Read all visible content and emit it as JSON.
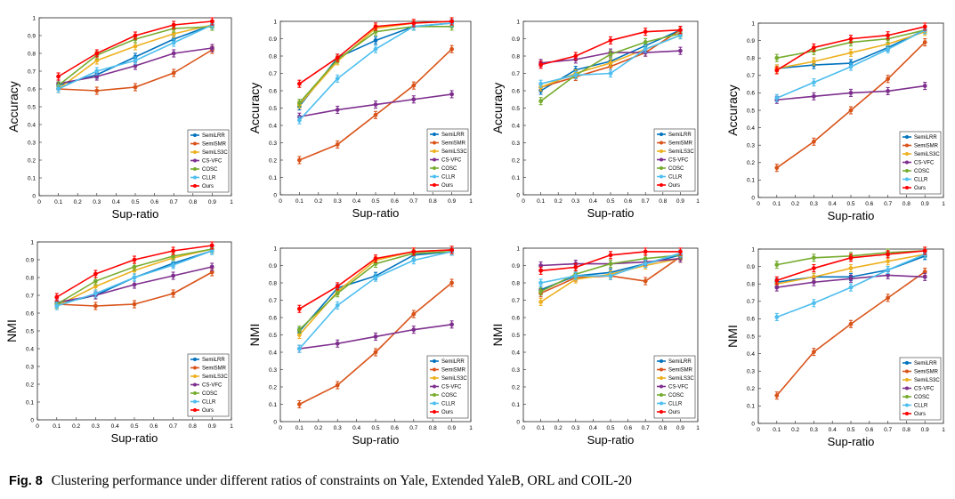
{
  "caption": {
    "label": "Fig. 8",
    "text": "Clustering performance under different ratios of constraints on Yale, Extended YaleB, ORL and COIL-20"
  },
  "legend_labels": [
    "SemiLRR",
    "SemiSMR",
    "SemiLS3C",
    "CS-VFC",
    "COSC",
    "CLLR",
    "Ours"
  ],
  "colors": [
    "#0072BD",
    "#D95319",
    "#EDB120",
    "#7E2F8E",
    "#77AC30",
    "#4DBEEE",
    "#FF0000"
  ],
  "chart_data": [
    {
      "type": "line",
      "title": "",
      "xlabel": "Sup-ratio",
      "ylabel": "Accuracy",
      "xlim": [
        0,
        1
      ],
      "ylim": [
        0,
        1
      ],
      "legend_position": "bottom-right",
      "x": [
        0.1,
        0.3,
        0.5,
        0.7,
        0.9
      ],
      "series": [
        {
          "name": "SemiLRR",
          "values": [
            0.62,
            0.68,
            0.78,
            0.88,
            0.96
          ]
        },
        {
          "name": "SemiSMR",
          "values": [
            0.6,
            0.59,
            0.61,
            0.69,
            0.82
          ]
        },
        {
          "name": "SemiLS3C",
          "values": [
            0.6,
            0.76,
            0.84,
            0.91,
            0.96
          ]
        },
        {
          "name": "CS-VFC",
          "values": [
            0.63,
            0.67,
            0.73,
            0.8,
            0.83
          ]
        },
        {
          "name": "COSC",
          "values": [
            0.62,
            0.79,
            0.88,
            0.94,
            0.95
          ]
        },
        {
          "name": "CLLR",
          "values": [
            0.6,
            0.7,
            0.76,
            0.86,
            0.96
          ]
        },
        {
          "name": "Ours",
          "values": [
            0.67,
            0.8,
            0.9,
            0.96,
            0.98
          ]
        }
      ]
    },
    {
      "type": "line",
      "title": "",
      "xlabel": "Sup-ratio",
      "ylabel": "Accuracy",
      "xlim": [
        0,
        1
      ],
      "ylim": [
        0,
        1
      ],
      "legend_position": "bottom-right",
      "x": [
        0.1,
        0.3,
        0.5,
        0.7,
        0.9
      ],
      "series": [
        {
          "name": "SemiLRR",
          "values": [
            0.51,
            0.79,
            0.89,
            0.97,
            0.99
          ]
        },
        {
          "name": "SemiSMR",
          "values": [
            0.2,
            0.29,
            0.46,
            0.63,
            0.84
          ]
        },
        {
          "name": "SemiLS3C",
          "values": [
            0.52,
            0.77,
            0.96,
            0.99,
            1.0
          ]
        },
        {
          "name": "CS-VFC",
          "values": [
            0.45,
            0.49,
            0.52,
            0.55,
            0.58
          ]
        },
        {
          "name": "COSC",
          "values": [
            0.53,
            0.78,
            0.94,
            0.97,
            0.97
          ]
        },
        {
          "name": "CLLR",
          "values": [
            0.43,
            0.67,
            0.84,
            0.97,
            0.99
          ]
        },
        {
          "name": "Ours",
          "values": [
            0.64,
            0.79,
            0.97,
            0.99,
            1.0
          ]
        }
      ]
    },
    {
      "type": "line",
      "title": "",
      "xlabel": "Sup-ratio",
      "ylabel": "Accuracy",
      "xlim": [
        0,
        1
      ],
      "ylim": [
        0,
        1
      ],
      "legend_position": "bottom-right",
      "x": [
        0.1,
        0.3,
        0.5,
        0.7,
        0.9
      ],
      "series": [
        {
          "name": "SemiLRR",
          "values": [
            0.6,
            0.72,
            0.77,
            0.86,
            0.95
          ]
        },
        {
          "name": "SemiSMR",
          "values": [
            0.62,
            0.68,
            0.74,
            0.82,
            0.95
          ]
        },
        {
          "name": "SemiLS3C",
          "values": [
            0.62,
            0.7,
            0.76,
            0.84,
            0.92
          ]
        },
        {
          "name": "CS-VFC",
          "values": [
            0.76,
            0.78,
            0.82,
            0.82,
            0.83
          ]
        },
        {
          "name": "COSC",
          "values": [
            0.54,
            0.69,
            0.81,
            0.88,
            0.93
          ]
        },
        {
          "name": "CLLR",
          "values": [
            0.64,
            0.69,
            0.7,
            0.84,
            0.92
          ]
        },
        {
          "name": "Ours",
          "values": [
            0.75,
            0.8,
            0.89,
            0.94,
            0.95
          ]
        }
      ]
    },
    {
      "type": "line",
      "title": "",
      "xlabel": "Sup-ratio",
      "ylabel": "Accuracy",
      "xlim": [
        0,
        1
      ],
      "ylim": [
        0,
        1
      ],
      "legend_position": "bottom-right",
      "x": [
        0.1,
        0.3,
        0.5,
        0.7,
        0.9
      ],
      "series": [
        {
          "name": "SemiLRR",
          "values": [
            0.74,
            0.76,
            0.77,
            0.86,
            0.96
          ]
        },
        {
          "name": "SemiSMR",
          "values": [
            0.17,
            0.32,
            0.5,
            0.68,
            0.89
          ]
        },
        {
          "name": "SemiLS3C",
          "values": [
            0.74,
            0.78,
            0.83,
            0.88,
            0.95
          ]
        },
        {
          "name": "CS-VFC",
          "values": [
            0.56,
            0.58,
            0.6,
            0.61,
            0.64
          ]
        },
        {
          "name": "COSC",
          "values": [
            0.8,
            0.84,
            0.89,
            0.91,
            0.96
          ]
        },
        {
          "name": "CLLR",
          "values": [
            0.57,
            0.66,
            0.75,
            0.85,
            0.96
          ]
        },
        {
          "name": "Ours",
          "values": [
            0.73,
            0.86,
            0.91,
            0.93,
            0.98
          ]
        }
      ]
    },
    {
      "type": "line",
      "title": "",
      "xlabel": "Sup-ratio",
      "ylabel": "NMI",
      "xlim": [
        0,
        1
      ],
      "ylim": [
        0,
        1
      ],
      "legend_position": "bottom-right",
      "x": [
        0.1,
        0.3,
        0.5,
        0.7,
        0.9
      ],
      "series": [
        {
          "name": "SemiLRR",
          "values": [
            0.65,
            0.7,
            0.8,
            0.88,
            0.95
          ]
        },
        {
          "name": "SemiSMR",
          "values": [
            0.65,
            0.64,
            0.65,
            0.71,
            0.83
          ]
        },
        {
          "name": "SemiLS3C",
          "values": [
            0.64,
            0.75,
            0.84,
            0.91,
            0.96
          ]
        },
        {
          "name": "CS-VFC",
          "values": [
            0.66,
            0.7,
            0.76,
            0.81,
            0.86
          ]
        },
        {
          "name": "COSC",
          "values": [
            0.65,
            0.78,
            0.86,
            0.92,
            0.96
          ]
        },
        {
          "name": "CLLR",
          "values": [
            0.64,
            0.71,
            0.8,
            0.87,
            0.95
          ]
        },
        {
          "name": "Ours",
          "values": [
            0.69,
            0.82,
            0.9,
            0.95,
            0.98
          ]
        }
      ]
    },
    {
      "type": "line",
      "title": "",
      "xlabel": "Sup-ratio",
      "ylabel": "NMI",
      "xlim": [
        0,
        1
      ],
      "ylim": [
        0,
        1
      ],
      "legend_position": "bottom-right",
      "x": [
        0.1,
        0.3,
        0.5,
        0.7,
        0.9
      ],
      "series": [
        {
          "name": "SemiLRR",
          "values": [
            0.52,
            0.77,
            0.84,
            0.96,
            0.98
          ]
        },
        {
          "name": "SemiSMR",
          "values": [
            0.1,
            0.21,
            0.4,
            0.62,
            0.8
          ]
        },
        {
          "name": "SemiLS3C",
          "values": [
            0.5,
            0.75,
            0.93,
            0.98,
            0.99
          ]
        },
        {
          "name": "CS-VFC",
          "values": [
            0.42,
            0.45,
            0.49,
            0.53,
            0.56
          ]
        },
        {
          "name": "COSC",
          "values": [
            0.53,
            0.74,
            0.91,
            0.97,
            0.98
          ]
        },
        {
          "name": "CLLR",
          "values": [
            0.42,
            0.67,
            0.83,
            0.93,
            0.98
          ]
        },
        {
          "name": "Ours",
          "values": [
            0.65,
            0.78,
            0.94,
            0.98,
            0.99
          ]
        }
      ]
    },
    {
      "type": "line",
      "title": "",
      "xlabel": "Sup-ratio",
      "ylabel": "NMI",
      "xlim": [
        0,
        1
      ],
      "ylim": [
        0,
        1
      ],
      "legend_position": "bottom-right",
      "x": [
        0.1,
        0.3,
        0.5,
        0.7,
        0.9
      ],
      "series": [
        {
          "name": "SemiLRR",
          "values": [
            0.76,
            0.84,
            0.86,
            0.91,
            0.96
          ]
        },
        {
          "name": "SemiSMR",
          "values": [
            0.74,
            0.83,
            0.84,
            0.81,
            0.95
          ]
        },
        {
          "name": "SemiLS3C",
          "values": [
            0.69,
            0.82,
            0.85,
            0.9,
            0.94
          ]
        },
        {
          "name": "CS-VFC",
          "values": [
            0.9,
            0.91,
            0.91,
            0.92,
            0.94
          ]
        },
        {
          "name": "COSC",
          "values": [
            0.75,
            0.85,
            0.91,
            0.94,
            0.96
          ]
        },
        {
          "name": "CLLR",
          "values": [
            0.8,
            0.84,
            0.84,
            0.91,
            0.97
          ]
        },
        {
          "name": "Ours",
          "values": [
            0.87,
            0.89,
            0.96,
            0.98,
            0.98
          ]
        }
      ]
    },
    {
      "type": "line",
      "title": "",
      "xlabel": "Sup-ratio",
      "ylabel": "NMI",
      "xlim": [
        0,
        1
      ],
      "ylim": [
        0,
        1
      ],
      "legend_position": "bottom-right",
      "x": [
        0.1,
        0.3,
        0.5,
        0.7,
        0.9
      ],
      "series": [
        {
          "name": "SemiLRR",
          "values": [
            0.81,
            0.84,
            0.84,
            0.88,
            0.96
          ]
        },
        {
          "name": "SemiSMR",
          "values": [
            0.16,
            0.41,
            0.57,
            0.72,
            0.87
          ]
        },
        {
          "name": "SemiLS3C",
          "values": [
            0.8,
            0.84,
            0.89,
            0.93,
            0.97
          ]
        },
        {
          "name": "CS-VFC",
          "values": [
            0.78,
            0.81,
            0.83,
            0.85,
            0.84
          ]
        },
        {
          "name": "COSC",
          "values": [
            0.91,
            0.95,
            0.96,
            0.98,
            0.99
          ]
        },
        {
          "name": "CLLR",
          "values": [
            0.61,
            0.69,
            0.78,
            0.88,
            0.97
          ]
        },
        {
          "name": "Ours",
          "values": [
            0.82,
            0.89,
            0.95,
            0.97,
            0.99
          ]
        }
      ]
    }
  ]
}
